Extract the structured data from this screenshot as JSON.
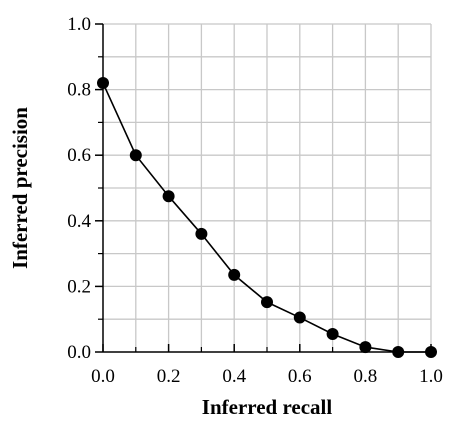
{
  "chart_data": {
    "type": "line",
    "title": "",
    "xlabel": "Inferred recall",
    "ylabel": "Inferred precision",
    "xlim": [
      0,
      1
    ],
    "ylim": [
      0,
      1
    ],
    "x_ticks": [
      "0.0",
      "0.2",
      "0.4",
      "0.6",
      "0.8",
      "1.0"
    ],
    "y_ticks": [
      "0.0",
      "0.2",
      "0.4",
      "0.6",
      "0.8",
      "1.0"
    ],
    "grid": true,
    "legend": "none",
    "series": [
      {
        "x": [
          0.0,
          0.1,
          0.2,
          0.3,
          0.4,
          0.5,
          0.6,
          0.7,
          0.8,
          0.9,
          1.0
        ],
        "y": [
          0.82,
          0.6,
          0.475,
          0.36,
          0.235,
          0.152,
          0.105,
          0.055,
          0.015,
          0.0,
          0.0
        ]
      }
    ],
    "colors": {
      "line": "#000000",
      "marker": "#000000",
      "grid": "#c8c8c8"
    }
  }
}
